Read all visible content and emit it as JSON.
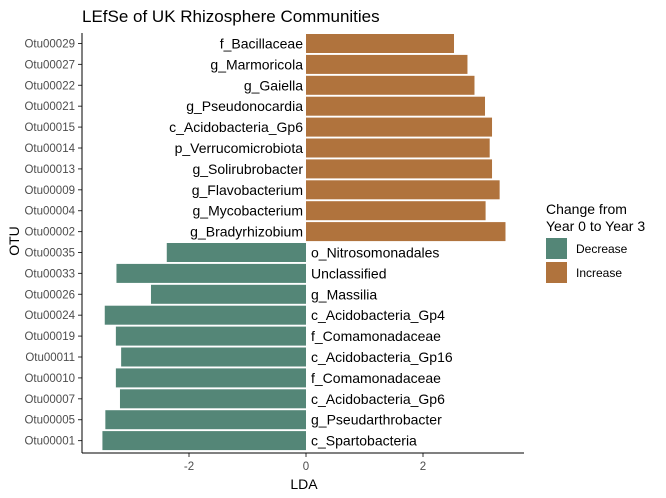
{
  "colors": {
    "Decrease": "#548677",
    "Increase": "#B0733D"
  },
  "chart_data": {
    "type": "bar",
    "orientation": "horizontal",
    "title": "LEfSe of UK Rhizosphere Communities",
    "xlabel": "LDA",
    "ylabel": "OTU",
    "xlim": [
      -3.6,
      3.9
    ],
    "xticks": [
      -2,
      0,
      2
    ],
    "grid": false,
    "legend": {
      "title_lines": [
        "Change from",
        "Year 0 to Year 3"
      ],
      "entries": [
        "Decrease",
        "Increase"
      ],
      "position": "right"
    },
    "bars": [
      {
        "otu": "Otu00029",
        "taxon": "f_Bacillaceae",
        "lda": 2.53,
        "group": "Increase"
      },
      {
        "otu": "Otu00027",
        "taxon": "g_Marmoricola",
        "lda": 2.76,
        "group": "Increase"
      },
      {
        "otu": "Otu00022",
        "taxon": "g_Gaiella",
        "lda": 2.88,
        "group": "Increase"
      },
      {
        "otu": "Otu00021",
        "taxon": "g_Pseudonocardia",
        "lda": 3.06,
        "group": "Increase"
      },
      {
        "otu": "Otu00015",
        "taxon": "c_Acidobacteria_Gp6",
        "lda": 3.18,
        "group": "Increase"
      },
      {
        "otu": "Otu00014",
        "taxon": "p_Verrucomicrobiota",
        "lda": 3.14,
        "group": "Increase"
      },
      {
        "otu": "Otu00013",
        "taxon": "g_Solirubrobacter",
        "lda": 3.18,
        "group": "Increase"
      },
      {
        "otu": "Otu00009",
        "taxon": "g_Flavobacterium",
        "lda": 3.31,
        "group": "Increase"
      },
      {
        "otu": "Otu00004",
        "taxon": "g_Mycobacterium",
        "lda": 3.07,
        "group": "Increase"
      },
      {
        "otu": "Otu00002",
        "taxon": "g_Bradyrhizobium",
        "lda": 3.41,
        "group": "Increase"
      },
      {
        "otu": "Otu00035",
        "taxon": "o_Nitrosomonadales",
        "lda": -2.38,
        "group": "Decrease"
      },
      {
        "otu": "Otu00033",
        "taxon": "Unclassified",
        "lda": -3.24,
        "group": "Decrease"
      },
      {
        "otu": "Otu00026",
        "taxon": "g_Massilia",
        "lda": -2.65,
        "group": "Decrease"
      },
      {
        "otu": "Otu00024",
        "taxon": "c_Acidobacteria_Gp4",
        "lda": -3.44,
        "group": "Decrease"
      },
      {
        "otu": "Otu00019",
        "taxon": "f_Comamonadaceae",
        "lda": -3.25,
        "group": "Decrease"
      },
      {
        "otu": "Otu00011",
        "taxon": "c_Acidobacteria_Gp16",
        "lda": -3.16,
        "group": "Decrease"
      },
      {
        "otu": "Otu00010",
        "taxon": "f_Comamonadaceae",
        "lda": -3.25,
        "group": "Decrease"
      },
      {
        "otu": "Otu00007",
        "taxon": "c_Acidobacteria_Gp6",
        "lda": -3.18,
        "group": "Decrease"
      },
      {
        "otu": "Otu00005",
        "taxon": "g_Pseudarthrobacter",
        "lda": -3.43,
        "group": "Decrease"
      },
      {
        "otu": "Otu00001",
        "taxon": "c_Spartobacteria",
        "lda": -3.48,
        "group": "Decrease"
      }
    ]
  }
}
